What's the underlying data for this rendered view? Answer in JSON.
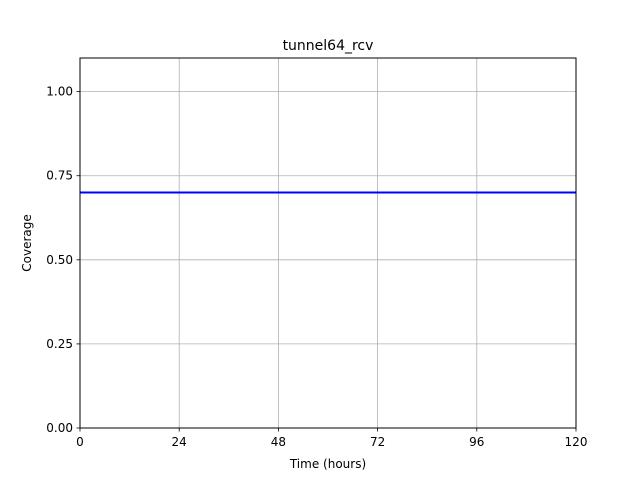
{
  "chart_data": {
    "type": "line",
    "title": "tunnel64_rcv",
    "xlabel": "Time (hours)",
    "ylabel": "Coverage",
    "xlim": [
      0,
      120
    ],
    "ylim": [
      0,
      1.1
    ],
    "xticks": [
      0,
      24,
      48,
      72,
      96,
      120
    ],
    "xtick_labels": [
      "0",
      "24",
      "48",
      "72",
      "96",
      "120"
    ],
    "yticks": [
      0,
      0.25,
      0.5,
      0.75,
      1.0
    ],
    "ytick_labels": [
      "0.00",
      "0.25",
      "0.50",
      "0.75",
      "1.00"
    ],
    "grid": true,
    "series": [
      {
        "x": [
          0,
          120
        ],
        "y": [
          0.7,
          0.7
        ],
        "color": "#0000ff"
      }
    ]
  }
}
